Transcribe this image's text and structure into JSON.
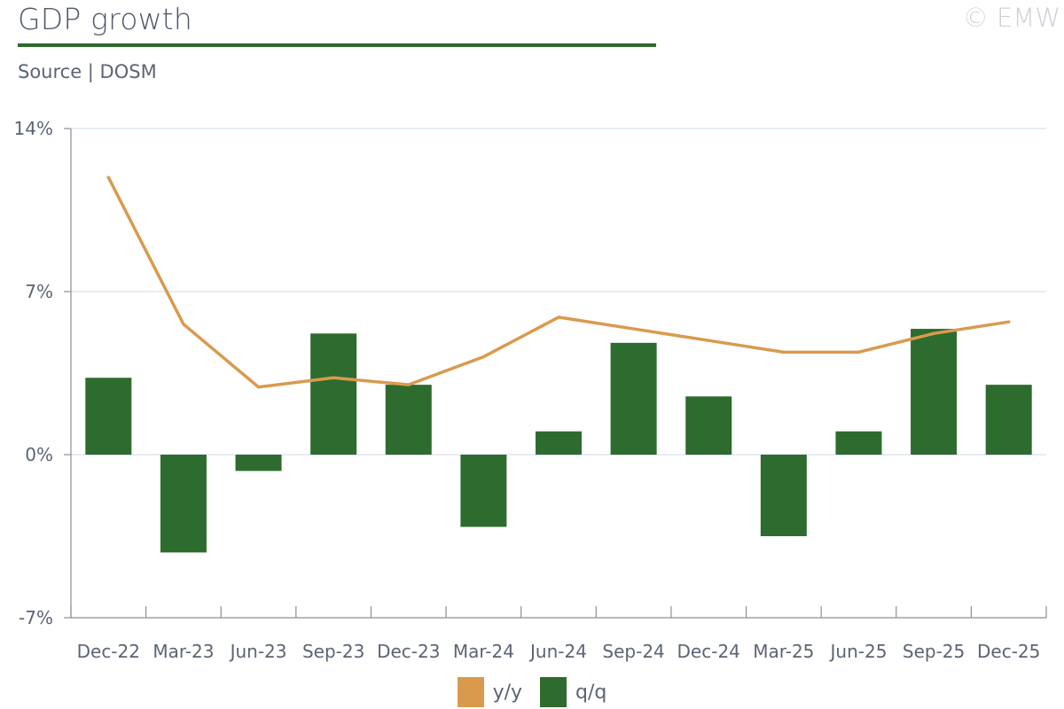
{
  "header": {
    "title": "GDP growth",
    "source": "Source | DOSM",
    "copyright": "© EMW"
  },
  "colors": {
    "yy": "#d99a4e",
    "qq": "#2e6b2e",
    "rule": "#2e6b2e"
  },
  "chart_data": {
    "type": "bar",
    "categories": [
      "Dec-22",
      "Mar-23",
      "Jun-23",
      "Sep-23",
      "Dec-23",
      "Mar-24",
      "Jun-24",
      "Sep-24",
      "Dec-24",
      "Mar-25",
      "Jun-25",
      "Sep-25",
      "Dec-25"
    ],
    "series": [
      {
        "name": "y/y",
        "type": "line",
        "color": "#d99a4e",
        "values": [
          11.9,
          5.6,
          2.9,
          3.3,
          3.0,
          4.2,
          5.9,
          5.4,
          4.9,
          4.4,
          4.4,
          5.2,
          5.7
        ]
      },
      {
        "name": "q/q",
        "type": "bar",
        "color": "#2e6b2e",
        "values": [
          3.3,
          -4.2,
          -0.7,
          5.2,
          3.0,
          -3.1,
          1.0,
          4.8,
          2.5,
          -3.5,
          1.0,
          5.4,
          3.0
        ]
      }
    ],
    "ylim": [
      -7,
      14
    ],
    "yticks": [
      -7,
      0,
      7,
      14
    ],
    "ytick_labels": [
      "-7%",
      "0%",
      "7%",
      "14%"
    ],
    "grid": true,
    "legend": "bottom-center",
    "xlabel": "",
    "ylabel": ""
  }
}
